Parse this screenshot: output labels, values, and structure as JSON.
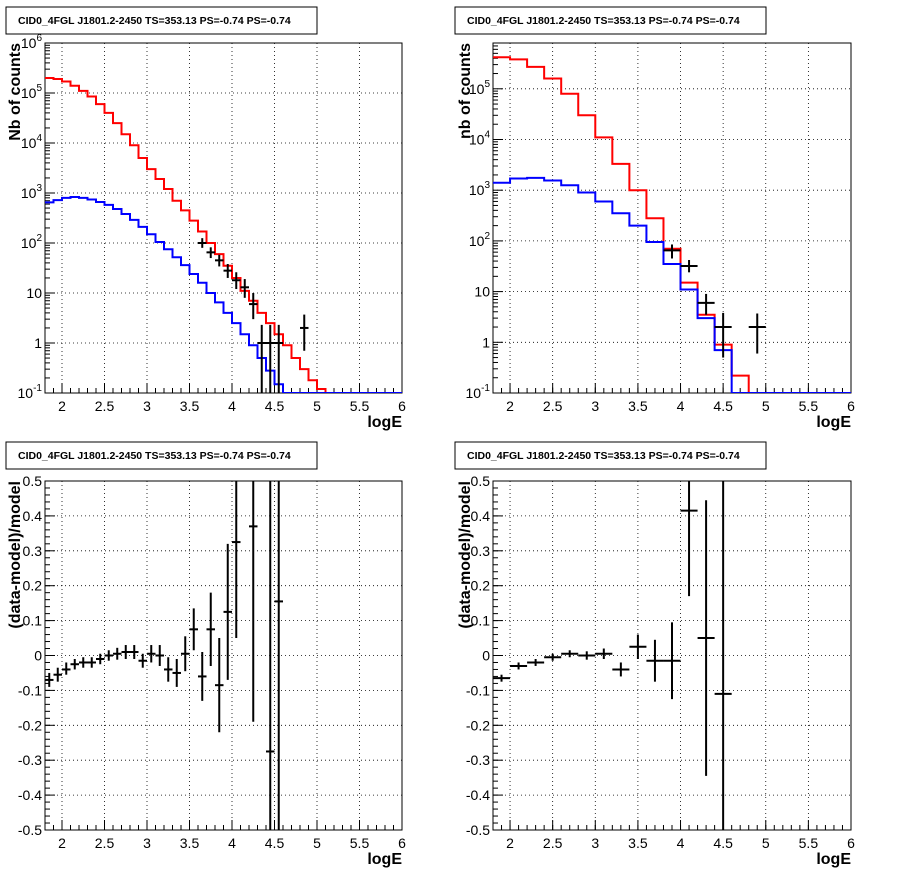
{
  "chart_data": [
    {
      "type": "step",
      "title": "CID0_4FGL J1801.2-2450 TS=353.13 PS=-0.74 PS=-0.74",
      "xlabel": "logE",
      "ylabel": "Nb of counts",
      "xlim": [
        1.8,
        6.0
      ],
      "ylim": [
        0.1,
        1000000
      ],
      "yscale": "log",
      "grid": true,
      "xticks": [
        "2",
        "2.5",
        "3",
        "3.5",
        "4",
        "4.5",
        "5",
        "5.5",
        "6"
      ],
      "yticks": [
        "10^-1",
        "1",
        "10",
        "10^2",
        "10^3",
        "10^4",
        "10^5",
        "10^6"
      ],
      "series": [
        {
          "color": "#ff0000",
          "x_edges": [
            1.8,
            1.9,
            2.0,
            2.1,
            2.2,
            2.3,
            2.4,
            2.5,
            2.6,
            2.7,
            2.8,
            2.9,
            3.0,
            3.1,
            3.2,
            3.3,
            3.4,
            3.5,
            3.6,
            3.7,
            3.8,
            3.9,
            4.0,
            4.1,
            4.2,
            4.3,
            4.4,
            4.5,
            4.6,
            4.7,
            4.8,
            4.9,
            5.0,
            5.1,
            5.2,
            5.3,
            5.4,
            5.5,
            5.6,
            5.7,
            5.8,
            5.9,
            6.0
          ],
          "values": [
            200000,
            190000,
            170000,
            140000,
            110000,
            85000,
            60000,
            40000,
            25000,
            15000,
            9000,
            5000,
            3000,
            1900,
            1200,
            700,
            450,
            280,
            170,
            100,
            60,
            35,
            20,
            11,
            7,
            4,
            2.5,
            1.5,
            0.9,
            0.5,
            0.3,
            0.18,
            0.12,
            0.1,
            0.1,
            0.1,
            0.1,
            0.1,
            0.1,
            0.1,
            0.1,
            0.1
          ]
        },
        {
          "color": "#0000ff",
          "x_edges": [
            1.8,
            1.9,
            2.0,
            2.1,
            2.2,
            2.3,
            2.4,
            2.5,
            2.6,
            2.7,
            2.8,
            2.9,
            3.0,
            3.1,
            3.2,
            3.3,
            3.4,
            3.5,
            3.6,
            3.7,
            3.8,
            3.9,
            4.0,
            4.1,
            4.2,
            4.3,
            4.4,
            4.5,
            4.6,
            4.7,
            4.8,
            4.9,
            5.0,
            5.1,
            5.2,
            5.3,
            5.4,
            5.5,
            5.6,
            5.7,
            5.8,
            5.9,
            6.0
          ],
          "values": [
            650,
            720,
            800,
            830,
            800,
            740,
            660,
            580,
            480,
            380,
            290,
            210,
            150,
            105,
            75,
            52,
            36,
            24,
            16,
            10,
            6.5,
            4,
            2.5,
            1.5,
            0.9,
            0.5,
            0.28,
            0.15,
            0.1,
            0.1,
            0.1,
            0.1,
            0.1,
            0.1,
            0.1,
            0.1,
            0.1,
            0.1,
            0.1,
            0.1,
            0.1,
            0.1
          ]
        }
      ],
      "points": [
        {
          "x": 3.65,
          "y": 100,
          "ylo": 80,
          "yhi": 125,
          "xerr": 0.05
        },
        {
          "x": 3.75,
          "y": 65,
          "ylo": 50,
          "yhi": 82,
          "xerr": 0.05
        },
        {
          "x": 3.85,
          "y": 45,
          "ylo": 34,
          "yhi": 58,
          "xerr": 0.05
        },
        {
          "x": 3.95,
          "y": 28,
          "ylo": 20,
          "yhi": 38,
          "xerr": 0.05
        },
        {
          "x": 4.05,
          "y": 18,
          "ylo": 12,
          "yhi": 26,
          "xerr": 0.05
        },
        {
          "x": 4.15,
          "y": 13,
          "ylo": 8,
          "yhi": 19,
          "xerr": 0.05
        },
        {
          "x": 4.25,
          "y": 6,
          "ylo": 3,
          "yhi": 10,
          "xerr": 0.05
        },
        {
          "x": 4.35,
          "y": 1,
          "ylo": 0.1,
          "yhi": 2.3,
          "xerr": 0.05
        },
        {
          "x": 4.45,
          "y": 1,
          "ylo": 0.1,
          "yhi": 2.3,
          "xerr": 0.05
        },
        {
          "x": 4.55,
          "y": 1,
          "ylo": 0.1,
          "yhi": 2.3,
          "xerr": 0.05
        },
        {
          "x": 4.85,
          "y": 2,
          "ylo": 0.7,
          "yhi": 3.7,
          "xerr": 0.05
        }
      ]
    },
    {
      "type": "step",
      "title": "CID0_4FGL J1801.2-2450 TS=353.13 PS=-0.74 PS=-0.74",
      "xlabel": "logE",
      "ylabel": "nb of counts",
      "xlim": [
        1.8,
        6.0
      ],
      "ylim": [
        0.1,
        800000
      ],
      "yscale": "log",
      "grid": true,
      "xticks": [
        "2",
        "2.5",
        "3",
        "3.5",
        "4",
        "4.5",
        "5",
        "5.5",
        "6"
      ],
      "yticks": [
        "10^-1",
        "1",
        "10",
        "10^2",
        "10^3",
        "10^4",
        "10^5"
      ],
      "series": [
        {
          "color": "#ff0000",
          "x_edges": [
            1.8,
            2.0,
            2.2,
            2.4,
            2.6,
            2.8,
            3.0,
            3.2,
            3.4,
            3.6,
            3.8,
            4.0,
            4.2,
            4.4,
            4.6,
            4.8,
            5.0,
            5.2,
            5.4,
            5.6,
            5.8,
            6.0
          ],
          "values": [
            420000,
            380000,
            270000,
            160000,
            80000,
            30000,
            11000,
            3300,
            1000,
            280,
            70,
            15,
            3.5,
            0.9,
            0.22,
            0.1,
            0.1,
            0.1,
            0.1,
            0.1,
            0.1
          ]
        },
        {
          "color": "#0000ff",
          "x_edges": [
            1.8,
            2.0,
            2.2,
            2.4,
            2.6,
            2.8,
            3.0,
            3.2,
            3.4,
            3.6,
            3.8,
            4.0,
            4.2,
            4.4,
            4.6,
            4.8,
            5.0,
            5.2,
            5.4,
            5.6,
            5.8,
            6.0
          ],
          "values": [
            1400,
            1700,
            1750,
            1550,
            1250,
            900,
            600,
            350,
            200,
            95,
            35,
            11,
            3,
            0.7,
            0.1,
            0.1,
            0.1,
            0.1,
            0.1,
            0.1,
            0.1
          ]
        }
      ],
      "points": [
        {
          "x": 3.9,
          "y": 65,
          "ylo": 45,
          "yhi": 85,
          "xerr": 0.1
        },
        {
          "x": 4.1,
          "y": 32,
          "ylo": 24,
          "yhi": 42,
          "xerr": 0.1
        },
        {
          "x": 4.3,
          "y": 6,
          "ylo": 3.5,
          "yhi": 9,
          "xerr": 0.1
        },
        {
          "x": 4.5,
          "y": 2,
          "ylo": 0.5,
          "yhi": 3.8,
          "xerr": 0.1
        },
        {
          "x": 4.9,
          "y": 2,
          "ylo": 0.6,
          "yhi": 3.7,
          "xerr": 0.1
        }
      ]
    },
    {
      "type": "scatter",
      "title": "CID0_4FGL J1801.2-2450 TS=353.13 PS=-0.74 PS=-0.74",
      "xlabel": "logE",
      "ylabel": "(data-model)/model",
      "xlim": [
        1.8,
        6.0
      ],
      "ylim": [
        -0.5,
        0.5
      ],
      "grid": true,
      "xticks": [
        "2",
        "2.5",
        "3",
        "3.5",
        "4",
        "4.5",
        "5",
        "5.5",
        "6"
      ],
      "yticks": [
        "-0.5",
        "-0.4",
        "-0.3",
        "-0.2",
        "-0.1",
        "0",
        "0.1",
        "0.2",
        "0.3",
        "0.4",
        "0.5"
      ],
      "points": [
        {
          "x": 1.85,
          "y": -0.07,
          "ylo": -0.09,
          "yhi": -0.05,
          "xerr": 0.05
        },
        {
          "x": 1.95,
          "y": -0.055,
          "ylo": -0.075,
          "yhi": -0.035,
          "xerr": 0.05
        },
        {
          "x": 2.05,
          "y": -0.04,
          "ylo": -0.055,
          "yhi": -0.02,
          "xerr": 0.05
        },
        {
          "x": 2.15,
          "y": -0.025,
          "ylo": -0.04,
          "yhi": -0.01,
          "xerr": 0.05
        },
        {
          "x": 2.25,
          "y": -0.02,
          "ylo": -0.035,
          "yhi": -0.005,
          "xerr": 0.05
        },
        {
          "x": 2.35,
          "y": -0.02,
          "ylo": -0.035,
          "yhi": -0.005,
          "xerr": 0.05
        },
        {
          "x": 2.45,
          "y": -0.01,
          "ylo": -0.025,
          "yhi": 0.005,
          "xerr": 0.05
        },
        {
          "x": 2.55,
          "y": 0.0,
          "ylo": -0.015,
          "yhi": 0.015,
          "xerr": 0.05
        },
        {
          "x": 2.65,
          "y": 0.005,
          "ylo": -0.012,
          "yhi": 0.022,
          "xerr": 0.05
        },
        {
          "x": 2.75,
          "y": 0.01,
          "ylo": -0.01,
          "yhi": 0.03,
          "xerr": 0.05
        },
        {
          "x": 2.85,
          "y": 0.01,
          "ylo": -0.01,
          "yhi": 0.03,
          "xerr": 0.05
        },
        {
          "x": 2.95,
          "y": -0.015,
          "ylo": -0.035,
          "yhi": 0.005,
          "xerr": 0.05
        },
        {
          "x": 3.05,
          "y": 0.005,
          "ylo": -0.02,
          "yhi": 0.03,
          "xerr": 0.05
        },
        {
          "x": 3.15,
          "y": 0.0,
          "ylo": -0.03,
          "yhi": 0.03,
          "xerr": 0.05
        },
        {
          "x": 3.25,
          "y": -0.04,
          "ylo": -0.075,
          "yhi": -0.005,
          "xerr": 0.05
        },
        {
          "x": 3.35,
          "y": -0.05,
          "ylo": -0.09,
          "yhi": -0.01,
          "xerr": 0.05
        },
        {
          "x": 3.45,
          "y": 0.005,
          "ylo": -0.045,
          "yhi": 0.055,
          "xerr": 0.05
        },
        {
          "x": 3.55,
          "y": 0.075,
          "ylo": 0.015,
          "yhi": 0.135,
          "xerr": 0.05
        },
        {
          "x": 3.65,
          "y": -0.06,
          "ylo": -0.13,
          "yhi": 0.01,
          "xerr": 0.05
        },
        {
          "x": 3.75,
          "y": 0.075,
          "ylo": -0.03,
          "yhi": 0.18,
          "xerr": 0.05
        },
        {
          "x": 3.85,
          "y": -0.085,
          "ylo": -0.22,
          "yhi": 0.05,
          "xerr": 0.05
        },
        {
          "x": 3.95,
          "y": 0.125,
          "ylo": -0.07,
          "yhi": 0.32,
          "xerr": 0.05
        },
        {
          "x": 4.05,
          "y": 0.325,
          "ylo": 0.05,
          "yhi": 0.5,
          "xerr": 0.05
        },
        {
          "x": 4.25,
          "y": 0.37,
          "ylo": -0.19,
          "yhi": 0.5,
          "xerr": 0.05
        },
        {
          "x": 4.45,
          "y": -0.275,
          "ylo": -0.5,
          "yhi": 0.5,
          "xerr": 0.05
        },
        {
          "x": 4.55,
          "y": 0.155,
          "ylo": -0.5,
          "yhi": 0.5,
          "xerr": 0.05
        }
      ]
    },
    {
      "type": "scatter",
      "title": "CID0_4FGL J1801.2-2450 TS=353.13 PS=-0.74 PS=-0.74",
      "xlabel": "logE",
      "ylabel": "(data-model)/model",
      "xlim": [
        1.8,
        6.0
      ],
      "ylim": [
        -0.5,
        0.5
      ],
      "grid": true,
      "xticks": [
        "2",
        "2.5",
        "3",
        "3.5",
        "4",
        "4.5",
        "5",
        "5.5",
        "6"
      ],
      "yticks": [
        "-0.5",
        "-0.4",
        "-0.3",
        "-0.2",
        "-0.1",
        "0",
        "0.1",
        "0.2",
        "0.3",
        "0.4",
        "0.5"
      ],
      "points": [
        {
          "x": 1.9,
          "y": -0.065,
          "ylo": -0.075,
          "yhi": -0.055,
          "xerr": 0.1
        },
        {
          "x": 2.1,
          "y": -0.03,
          "ylo": -0.04,
          "yhi": -0.02,
          "xerr": 0.1
        },
        {
          "x": 2.3,
          "y": -0.02,
          "ylo": -0.03,
          "yhi": -0.01,
          "xerr": 0.1
        },
        {
          "x": 2.5,
          "y": -0.005,
          "ylo": -0.015,
          "yhi": 0.005,
          "xerr": 0.1
        },
        {
          "x": 2.7,
          "y": 0.005,
          "ylo": -0.005,
          "yhi": 0.015,
          "xerr": 0.1
        },
        {
          "x": 2.9,
          "y": 0.0,
          "ylo": -0.012,
          "yhi": 0.012,
          "xerr": 0.1
        },
        {
          "x": 3.1,
          "y": 0.005,
          "ylo": -0.01,
          "yhi": 0.02,
          "xerr": 0.1
        },
        {
          "x": 3.3,
          "y": -0.04,
          "ylo": -0.06,
          "yhi": -0.02,
          "xerr": 0.1
        },
        {
          "x": 3.5,
          "y": 0.025,
          "ylo": -0.01,
          "yhi": 0.06,
          "xerr": 0.1
        },
        {
          "x": 3.7,
          "y": -0.015,
          "ylo": -0.075,
          "yhi": 0.045,
          "xerr": 0.1
        },
        {
          "x": 3.9,
          "y": -0.015,
          "ylo": -0.125,
          "yhi": 0.095,
          "xerr": 0.1
        },
        {
          "x": 4.1,
          "y": 0.415,
          "ylo": 0.17,
          "yhi": 0.5,
          "xerr": 0.1
        },
        {
          "x": 4.3,
          "y": 0.05,
          "ylo": -0.345,
          "yhi": 0.445,
          "xerr": 0.1
        },
        {
          "x": 4.5,
          "y": -0.11,
          "ylo": -0.5,
          "yhi": 0.5,
          "xerr": 0.1
        }
      ]
    }
  ]
}
